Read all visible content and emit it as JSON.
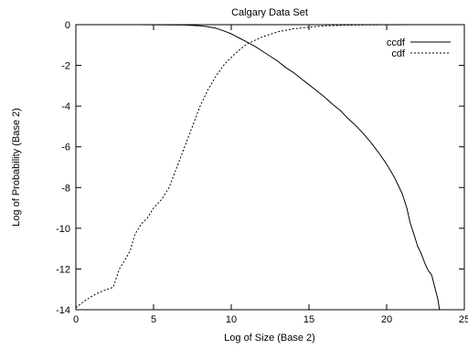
{
  "chart_data": {
    "type": "line",
    "title": "Calgary Data Set",
    "xlabel": "Log of Size (Base 2)",
    "ylabel": "Log of Probability (Base 2)",
    "xlim": [
      0,
      25
    ],
    "ylim": [
      -14,
      0
    ],
    "xticks": [
      0,
      5,
      10,
      15,
      20,
      25
    ],
    "yticks": [
      0,
      -2,
      -4,
      -6,
      -8,
      -10,
      -12,
      -14
    ],
    "grid": false,
    "legend_position": "top-right",
    "series": [
      {
        "name": "ccdf",
        "line_style": "solid",
        "points": [
          [
            0,
            0
          ],
          [
            2,
            0
          ],
          [
            4,
            0
          ],
          [
            6,
            -0.01
          ],
          [
            7,
            -0.02
          ],
          [
            8,
            -0.06
          ],
          [
            8.5,
            -0.1
          ],
          [
            9,
            -0.17
          ],
          [
            9.5,
            -0.3
          ],
          [
            10,
            -0.45
          ],
          [
            10.5,
            -0.65
          ],
          [
            11,
            -0.85
          ],
          [
            11.5,
            -1.05
          ],
          [
            12,
            -1.3
          ],
          [
            12.5,
            -1.55
          ],
          [
            13,
            -1.8
          ],
          [
            13.5,
            -2.1
          ],
          [
            14,
            -2.35
          ],
          [
            14.5,
            -2.65
          ],
          [
            15,
            -2.95
          ],
          [
            15.5,
            -3.25
          ],
          [
            16,
            -3.55
          ],
          [
            16.5,
            -3.9
          ],
          [
            17,
            -4.2
          ],
          [
            17.5,
            -4.6
          ],
          [
            18,
            -4.95
          ],
          [
            18.5,
            -5.35
          ],
          [
            19,
            -5.8
          ],
          [
            19.5,
            -6.3
          ],
          [
            20,
            -6.85
          ],
          [
            20.5,
            -7.5
          ],
          [
            21,
            -8.3
          ],
          [
            21.3,
            -9.0
          ],
          [
            21.5,
            -9.7
          ],
          [
            21.8,
            -10.4
          ],
          [
            22,
            -10.9
          ],
          [
            22.2,
            -11.2
          ],
          [
            22.5,
            -11.8
          ],
          [
            22.7,
            -12.1
          ],
          [
            22.9,
            -12.3
          ],
          [
            23.1,
            -12.9
          ],
          [
            23.3,
            -13.5
          ],
          [
            23.4,
            -14
          ]
        ]
      },
      {
        "name": "cdf",
        "line_style": "dashed",
        "points": [
          [
            0,
            -13.9
          ],
          [
            0.5,
            -13.6
          ],
          [
            1,
            -13.35
          ],
          [
            1.5,
            -13.15
          ],
          [
            2,
            -13.0
          ],
          [
            2.4,
            -12.9
          ],
          [
            2.8,
            -12.0
          ],
          [
            3.2,
            -11.5
          ],
          [
            3.5,
            -11.1
          ],
          [
            3.8,
            -10.3
          ],
          [
            4.2,
            -9.8
          ],
          [
            4.6,
            -9.5
          ],
          [
            5,
            -9.0
          ],
          [
            5.5,
            -8.6
          ],
          [
            6,
            -8.0
          ],
          [
            6.5,
            -7.0
          ],
          [
            7,
            -6.0
          ],
          [
            7.5,
            -5.0
          ],
          [
            8,
            -4.0
          ],
          [
            8.5,
            -3.2
          ],
          [
            9,
            -2.55
          ],
          [
            9.5,
            -2.0
          ],
          [
            10,
            -1.6
          ],
          [
            10.5,
            -1.25
          ],
          [
            11,
            -0.95
          ],
          [
            12,
            -0.6
          ],
          [
            13,
            -0.35
          ],
          [
            14,
            -0.2
          ],
          [
            15,
            -0.12
          ],
          [
            16,
            -0.06
          ],
          [
            18,
            -0.02
          ],
          [
            20,
            -0.005
          ],
          [
            23.3,
            0
          ]
        ]
      }
    ]
  }
}
